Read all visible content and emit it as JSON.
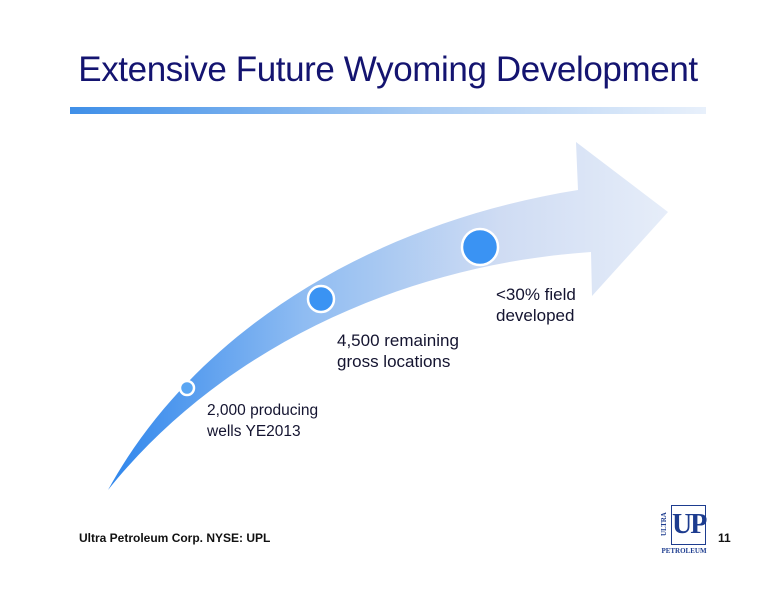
{
  "slide": {
    "title": "Extensive Future Wyoming Development",
    "page_number": "11"
  },
  "milestones": [
    {
      "line1": "2,000 producing",
      "line2": "wells YE2013"
    },
    {
      "line1": "4,500 remaining",
      "line2": "gross locations"
    },
    {
      "line1": "<30% field",
      "line2": "developed"
    }
  ],
  "footer": {
    "company": "Ultra Petroleum Corp. NYSE: UPL"
  },
  "logo": {
    "mark": "UP",
    "side_text": "ULTRA",
    "sub_text": "PETROLEUM"
  },
  "colors": {
    "title": "#141470",
    "arrow_start": "#2f86ec",
    "arrow_end": "#e6edf9",
    "milestone_dot": "#3a93f3",
    "logo": "#1d3c8f"
  }
}
